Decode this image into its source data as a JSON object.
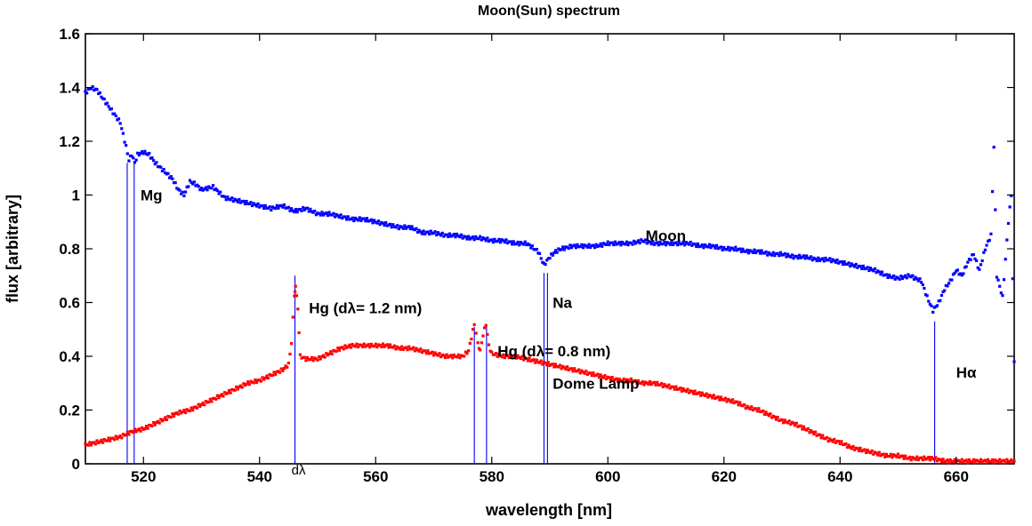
{
  "chart_data": {
    "type": "scatter",
    "title": "Moon(Sun) spectrum",
    "xlabel": "wavelength [nm]",
    "ylabel": "flux [arbitrary]",
    "xlim": [
      510,
      670
    ],
    "ylim": [
      0,
      1.6
    ],
    "x_ticks": [
      520,
      540,
      560,
      580,
      600,
      620,
      640,
      660
    ],
    "y_ticks": [
      0,
      0.2,
      0.4,
      0.6,
      0.8,
      1,
      1.2,
      1.4,
      1.6
    ],
    "x_tick_labels": [
      "520",
      "540",
      "560",
      "580",
      "600",
      "620",
      "640",
      "660"
    ],
    "y_tick_labels": [
      "0",
      "0.2",
      "0.4",
      "0.6",
      "0.8",
      "1",
      "1.2",
      "1.4",
      "1.6"
    ],
    "grid": false,
    "series": [
      {
        "name": "Moon",
        "color": "#0000ff",
        "points": [
          [
            510,
            1.38
          ],
          [
            511,
            1.4
          ],
          [
            512,
            1.39
          ],
          [
            513,
            1.36
          ],
          [
            514,
            1.33
          ],
          [
            515,
            1.3
          ],
          [
            516,
            1.27
          ],
          [
            517,
            1.18
          ],
          [
            517.5,
            1.13
          ],
          [
            518,
            1.15
          ],
          [
            518.5,
            1.12
          ],
          [
            519,
            1.15
          ],
          [
            520,
            1.16
          ],
          [
            521,
            1.15
          ],
          [
            522,
            1.12
          ],
          [
            523,
            1.1
          ],
          [
            524,
            1.08
          ],
          [
            525,
            1.06
          ],
          [
            526,
            1.02
          ],
          [
            527,
            1.0
          ],
          [
            528,
            1.05
          ],
          [
            529,
            1.04
          ],
          [
            530,
            1.02
          ],
          [
            532,
            1.03
          ],
          [
            534,
            0.99
          ],
          [
            536,
            0.98
          ],
          [
            538,
            0.97
          ],
          [
            540,
            0.96
          ],
          [
            542,
            0.95
          ],
          [
            544,
            0.96
          ],
          [
            546,
            0.94
          ],
          [
            548,
            0.95
          ],
          [
            550,
            0.93
          ],
          [
            552,
            0.93
          ],
          [
            554,
            0.92
          ],
          [
            556,
            0.91
          ],
          [
            558,
            0.91
          ],
          [
            560,
            0.9
          ],
          [
            562,
            0.89
          ],
          [
            564,
            0.88
          ],
          [
            566,
            0.88
          ],
          [
            568,
            0.86
          ],
          [
            570,
            0.86
          ],
          [
            572,
            0.85
          ],
          [
            574,
            0.85
          ],
          [
            576,
            0.84
          ],
          [
            578,
            0.84
          ],
          [
            580,
            0.83
          ],
          [
            582,
            0.83
          ],
          [
            584,
            0.82
          ],
          [
            586,
            0.82
          ],
          [
            588,
            0.79
          ],
          [
            589,
            0.74
          ],
          [
            590,
            0.77
          ],
          [
            591,
            0.79
          ],
          [
            592,
            0.8
          ],
          [
            594,
            0.81
          ],
          [
            596,
            0.81
          ],
          [
            598,
            0.81
          ],
          [
            600,
            0.82
          ],
          [
            602,
            0.82
          ],
          [
            604,
            0.82
          ],
          [
            606,
            0.83
          ],
          [
            608,
            0.82
          ],
          [
            610,
            0.82
          ],
          [
            612,
            0.82
          ],
          [
            614,
            0.82
          ],
          [
            616,
            0.81
          ],
          [
            618,
            0.81
          ],
          [
            620,
            0.8
          ],
          [
            622,
            0.8
          ],
          [
            624,
            0.79
          ],
          [
            626,
            0.79
          ],
          [
            628,
            0.78
          ],
          [
            630,
            0.78
          ],
          [
            632,
            0.77
          ],
          [
            634,
            0.77
          ],
          [
            636,
            0.76
          ],
          [
            638,
            0.76
          ],
          [
            640,
            0.75
          ],
          [
            642,
            0.74
          ],
          [
            644,
            0.73
          ],
          [
            646,
            0.72
          ],
          [
            648,
            0.7
          ],
          [
            650,
            0.69
          ],
          [
            652,
            0.7
          ],
          [
            654,
            0.68
          ],
          [
            655,
            0.62
          ],
          [
            656,
            0.57
          ],
          [
            657,
            0.6
          ],
          [
            658,
            0.65
          ],
          [
            659,
            0.68
          ],
          [
            660,
            0.72
          ],
          [
            661,
            0.7
          ],
          [
            662,
            0.75
          ],
          [
            663,
            0.78
          ],
          [
            664,
            0.72
          ],
          [
            665,
            0.8
          ],
          [
            666,
            0.85
          ],
          [
            666.5,
            1.18
          ],
          [
            667,
            0.7
          ],
          [
            668,
            0.62
          ],
          [
            669,
            0.9
          ],
          [
            669.5,
            1.0
          ],
          [
            670,
            0.38
          ]
        ]
      },
      {
        "name": "Dome Lamp",
        "color": "#ff0000",
        "points": [
          [
            510,
            0.07
          ],
          [
            512,
            0.08
          ],
          [
            514,
            0.09
          ],
          [
            516,
            0.1
          ],
          [
            518,
            0.12
          ],
          [
            520,
            0.13
          ],
          [
            522,
            0.15
          ],
          [
            524,
            0.17
          ],
          [
            526,
            0.19
          ],
          [
            528,
            0.2
          ],
          [
            530,
            0.22
          ],
          [
            532,
            0.24
          ],
          [
            534,
            0.26
          ],
          [
            536,
            0.28
          ],
          [
            538,
            0.3
          ],
          [
            540,
            0.31
          ],
          [
            542,
            0.33
          ],
          [
            544,
            0.35
          ],
          [
            545,
            0.37
          ],
          [
            545.5,
            0.45
          ],
          [
            546,
            0.63
          ],
          [
            546.2,
            0.66
          ],
          [
            546.6,
            0.58
          ],
          [
            547,
            0.4
          ],
          [
            548,
            0.39
          ],
          [
            550,
            0.39
          ],
          [
            552,
            0.41
          ],
          [
            554,
            0.43
          ],
          [
            556,
            0.44
          ],
          [
            558,
            0.44
          ],
          [
            560,
            0.44
          ],
          [
            562,
            0.44
          ],
          [
            564,
            0.43
          ],
          [
            566,
            0.43
          ],
          [
            568,
            0.42
          ],
          [
            570,
            0.41
          ],
          [
            572,
            0.4
          ],
          [
            574,
            0.4
          ],
          [
            575,
            0.4
          ],
          [
            576,
            0.42
          ],
          [
            577,
            0.52
          ],
          [
            577.6,
            0.45
          ],
          [
            578,
            0.42
          ],
          [
            578.5,
            0.48
          ],
          [
            579,
            0.52
          ],
          [
            579.5,
            0.44
          ],
          [
            580,
            0.41
          ],
          [
            582,
            0.4
          ],
          [
            584,
            0.4
          ],
          [
            586,
            0.39
          ],
          [
            588,
            0.38
          ],
          [
            590,
            0.37
          ],
          [
            592,
            0.36
          ],
          [
            594,
            0.35
          ],
          [
            596,
            0.34
          ],
          [
            598,
            0.33
          ],
          [
            600,
            0.32
          ],
          [
            602,
            0.31
          ],
          [
            604,
            0.31
          ],
          [
            606,
            0.3
          ],
          [
            608,
            0.3
          ],
          [
            610,
            0.29
          ],
          [
            612,
            0.28
          ],
          [
            614,
            0.27
          ],
          [
            616,
            0.26
          ],
          [
            618,
            0.25
          ],
          [
            620,
            0.24
          ],
          [
            622,
            0.23
          ],
          [
            624,
            0.21
          ],
          [
            626,
            0.2
          ],
          [
            628,
            0.18
          ],
          [
            630,
            0.16
          ],
          [
            632,
            0.15
          ],
          [
            634,
            0.13
          ],
          [
            636,
            0.11
          ],
          [
            638,
            0.09
          ],
          [
            640,
            0.08
          ],
          [
            642,
            0.06
          ],
          [
            644,
            0.05
          ],
          [
            646,
            0.04
          ],
          [
            648,
            0.03
          ],
          [
            650,
            0.03
          ],
          [
            652,
            0.02
          ],
          [
            654,
            0.02
          ],
          [
            656,
            0.02
          ],
          [
            658,
            0.01
          ],
          [
            660,
            0.01
          ],
          [
            662,
            0.01
          ],
          [
            664,
            0.01
          ],
          [
            666,
            0.01
          ],
          [
            668,
            0.01
          ],
          [
            670,
            0.01
          ]
        ]
      }
    ],
    "vertical_lines": [
      {
        "x": 517.2,
        "y_top": 1.12,
        "color": "#0000ff"
      },
      {
        "x": 518.4,
        "y_top": 1.12,
        "color": "#0000ff"
      },
      {
        "x": 546.1,
        "y_top": 0.7,
        "color": "#0000ff"
      },
      {
        "x": 577.0,
        "y_top": 0.51,
        "color": "#0000ff"
      },
      {
        "x": 579.1,
        "y_top": 0.51,
        "color": "#0000ff"
      },
      {
        "x": 589.0,
        "y_top": 0.71,
        "color": "#0000ff"
      },
      {
        "x": 589.6,
        "y_top": 0.71,
        "color": "#0000ff"
      },
      {
        "x": 656.3,
        "y_top": 0.53,
        "color": "#0000ff"
      }
    ],
    "annotations": [
      {
        "text": "Mg",
        "x": 519.5,
        "y": 0.98
      },
      {
        "text": "Moon",
        "x": 606.5,
        "y": 0.83
      },
      {
        "text": "Na",
        "x": 590.5,
        "y": 0.58
      },
      {
        "text": "Hg (dλ= 1.2 nm)",
        "x": 548.5,
        "y": 0.56
      },
      {
        "text": "Hg (dλ= 0.8 nm)",
        "x": 581.0,
        "y": 0.4
      },
      {
        "text": "Dome Lamp",
        "x": 590.5,
        "y": 0.28
      },
      {
        "text": "Hα",
        "x": 660.0,
        "y": 0.32
      },
      {
        "text": "dλ",
        "x": 545.5,
        "y": -0.04,
        "style": "light"
      }
    ]
  }
}
